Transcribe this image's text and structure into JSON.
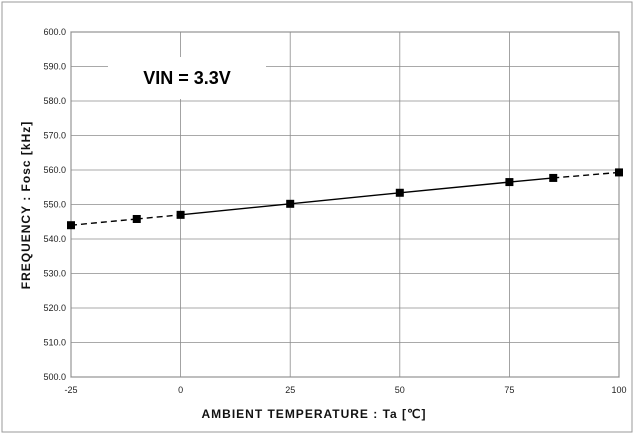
{
  "chart_data": {
    "type": "line",
    "xlabel": "AMBIENT TEMPERATURE : Ta [℃]",
    "ylabel": "FREQUENCY : Fosc [kHz]",
    "annotation": "VIN = 3.3V",
    "xlim": [
      -25,
      100
    ],
    "ylim": [
      500,
      600
    ],
    "x_ticks": [
      "-25",
      "0",
      "25",
      "50",
      "75",
      "100"
    ],
    "x_tick_values": [
      -25,
      0,
      25,
      50,
      75,
      100
    ],
    "y_ticks": [
      "500.0",
      "510.0",
      "520.0",
      "530.0",
      "540.0",
      "550.0",
      "560.0",
      "570.0",
      "580.0",
      "590.0",
      "600.0"
    ],
    "y_tick_values": [
      500,
      510,
      520,
      530,
      540,
      550,
      560,
      570,
      580,
      590,
      600
    ],
    "grid": true,
    "series": [
      {
        "x": [
          -25,
          -10,
          0,
          25,
          50,
          75,
          85,
          100
        ],
        "y": [
          544.0,
          545.8,
          547.0,
          550.2,
          553.4,
          556.5,
          557.7,
          559.3
        ],
        "solid_range": [
          0,
          85
        ]
      }
    ]
  }
}
